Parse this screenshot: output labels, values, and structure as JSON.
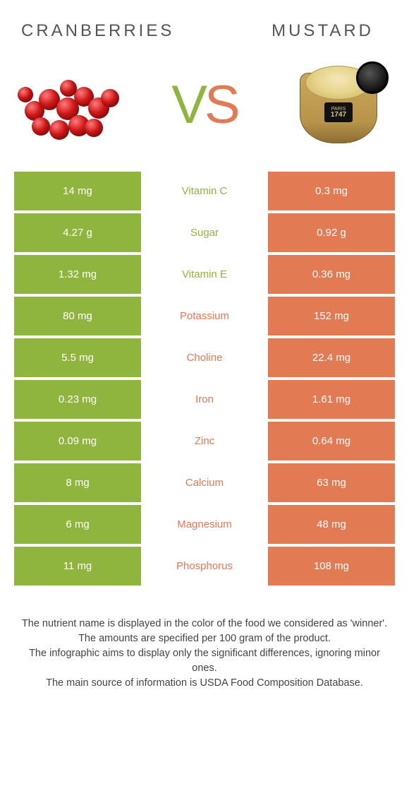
{
  "colors": {
    "green": "#8fb53e",
    "orange": "#e27a53"
  },
  "titles": {
    "left": "CRANBERRIES",
    "right": "MUSTARD"
  },
  "vs": {
    "v": "V",
    "s": "S"
  },
  "jar_label": {
    "line1": "PARIS",
    "line2": "1747"
  },
  "rows": [
    {
      "left": "14 mg",
      "mid": "Vitamin C",
      "right": "0.3 mg",
      "winner": "green"
    },
    {
      "left": "4.27 g",
      "mid": "Sugar",
      "right": "0.92 g",
      "winner": "green"
    },
    {
      "left": "1.32 mg",
      "mid": "Vitamin E",
      "right": "0.36 mg",
      "winner": "green"
    },
    {
      "left": "80 mg",
      "mid": "Potassium",
      "right": "152 mg",
      "winner": "orange"
    },
    {
      "left": "5.5 mg",
      "mid": "Choline",
      "right": "22.4 mg",
      "winner": "orange"
    },
    {
      "left": "0.23 mg",
      "mid": "Iron",
      "right": "1.61 mg",
      "winner": "orange"
    },
    {
      "left": "0.09 mg",
      "mid": "Zinc",
      "right": "0.64 mg",
      "winner": "orange"
    },
    {
      "left": "8 mg",
      "mid": "Calcium",
      "right": "63 mg",
      "winner": "orange"
    },
    {
      "left": "6 mg",
      "mid": "Magnesium",
      "right": "48 mg",
      "winner": "orange"
    },
    {
      "left": "11 mg",
      "mid": "Phosphorus",
      "right": "108 mg",
      "winner": "orange"
    }
  ],
  "notes": [
    "The nutrient name is displayed in the color of the food we considered as 'winner'.",
    "The amounts are specified per 100 gram of the product.",
    "The infographic aims to display only the significant differences, ignoring minor ones.",
    "The main source of information is USDA Food Composition Database."
  ],
  "berries": [
    {
      "l": 10,
      "t": 55,
      "s": 28
    },
    {
      "l": 30,
      "t": 38,
      "s": 30
    },
    {
      "l": 55,
      "t": 50,
      "s": 32
    },
    {
      "l": 80,
      "t": 35,
      "s": 28
    },
    {
      "l": 100,
      "t": 50,
      "s": 30
    },
    {
      "l": 118,
      "t": 38,
      "s": 26
    },
    {
      "l": 20,
      "t": 78,
      "s": 26
    },
    {
      "l": 45,
      "t": 82,
      "s": 28
    },
    {
      "l": 72,
      "t": 75,
      "s": 30
    },
    {
      "l": 95,
      "t": 80,
      "s": 26
    },
    {
      "l": 60,
      "t": 25,
      "s": 24
    },
    {
      "l": 0,
      "t": 35,
      "s": 22
    }
  ]
}
